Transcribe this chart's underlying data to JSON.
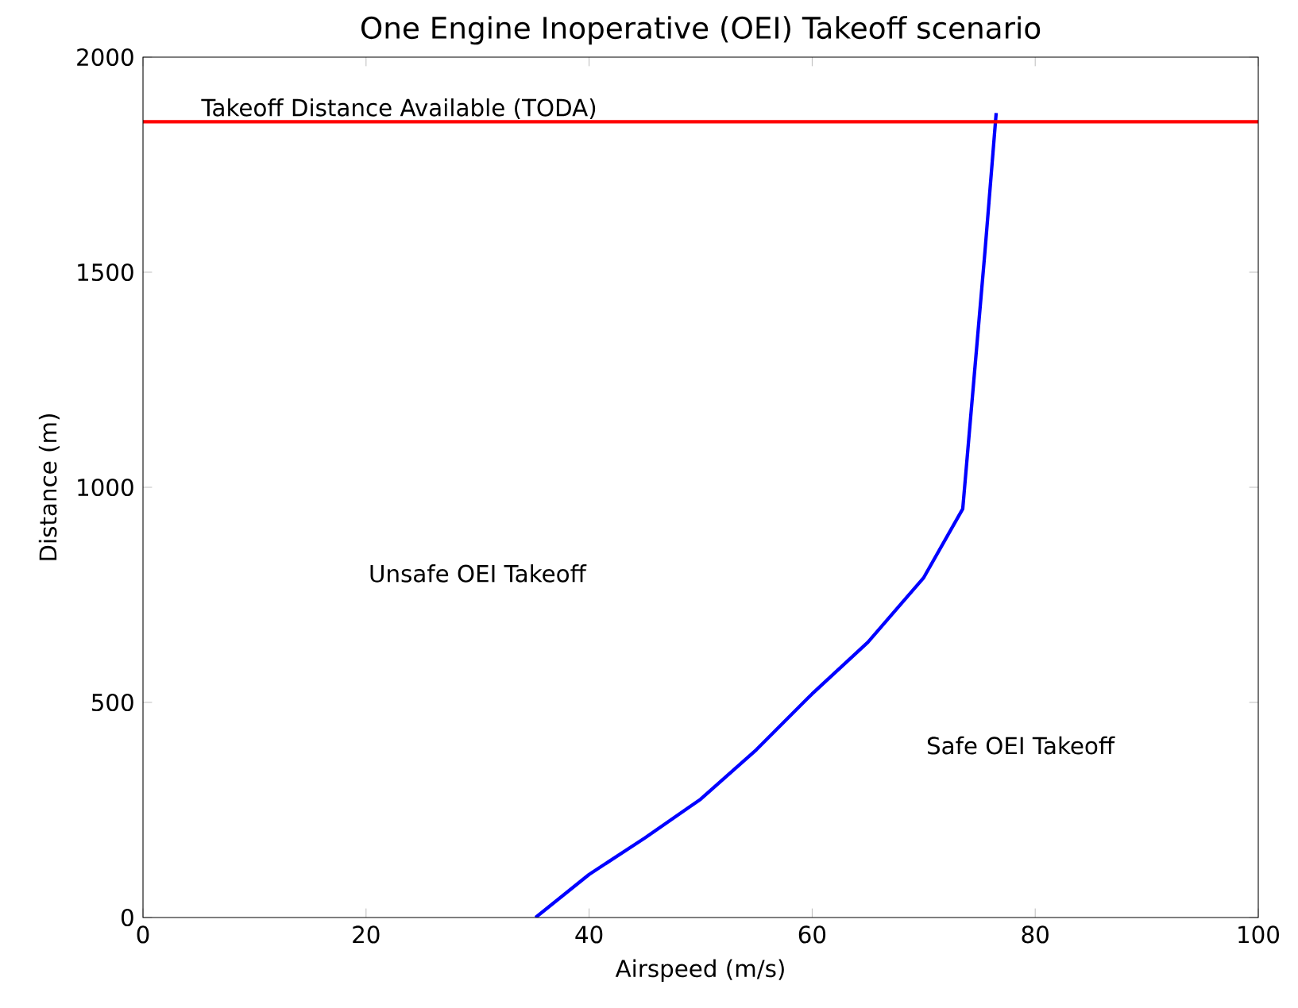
{
  "chart_data": {
    "type": "line",
    "title": "One Engine Inoperative (OEI) Takeoff scenario",
    "xlabel": "Airspeed (m/s)",
    "ylabel": "Distance (m)",
    "x": [
      35.2,
      40,
      45,
      50,
      55,
      60,
      65,
      70,
      73.5,
      74.5,
      75.5,
      76.5
    ],
    "series": [
      {
        "color": "#0000ff",
        "values": [
          0,
          100,
          185,
          275,
          390,
          520,
          640,
          790,
          950,
          1250,
          1550,
          1870
        ]
      }
    ],
    "xlim": [
      0,
      100
    ],
    "ylim": [
      0,
      2000
    ],
    "xticks": [
      0,
      20,
      40,
      60,
      80,
      100
    ],
    "yticks": [
      0,
      500,
      1000,
      1500,
      2000
    ],
    "ref_lines": [
      {
        "axis": "y",
        "value": 1850,
        "label": "Takeoff Distance Available (TODA)",
        "color": "#ff0000"
      }
    ],
    "annotations": [
      "Unsafe OEI Takeoff",
      "Safe OEI Takeoff"
    ],
    "line_style": "solid"
  }
}
